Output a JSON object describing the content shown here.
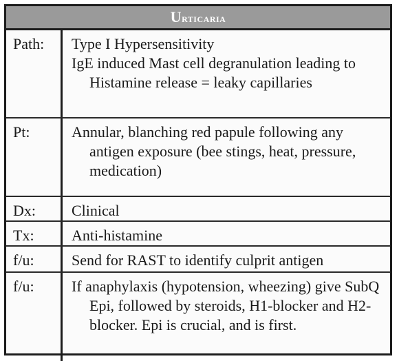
{
  "card": {
    "title": "Urticaria",
    "rows": [
      {
        "label": "Path:",
        "lines": [
          "Type I Hypersensitivity",
          "IgE induced Mast cell degranulation leading to Histamine release = leaky capillaries"
        ]
      },
      {
        "label": "Pt:",
        "lines": [
          "Annular, blanching red papule following any antigen exposure  (bee stings, heat, pressure, medication)"
        ]
      },
      {
        "label": "Dx:",
        "lines": [
          "Clinical"
        ]
      },
      {
        "label": "Tx:",
        "lines": [
          "Anti-histamine"
        ]
      },
      {
        "label": "f/u:",
        "lines": [
          "Send for RAST to identify culprit antigen"
        ]
      },
      {
        "label": "f/u:",
        "lines": [
          "If anaphylaxis (hypotension, wheezing) give SubQ Epi, followed by steroids, H1-blocker and H2-blocker. Epi is crucial, and is first."
        ]
      }
    ]
  }
}
